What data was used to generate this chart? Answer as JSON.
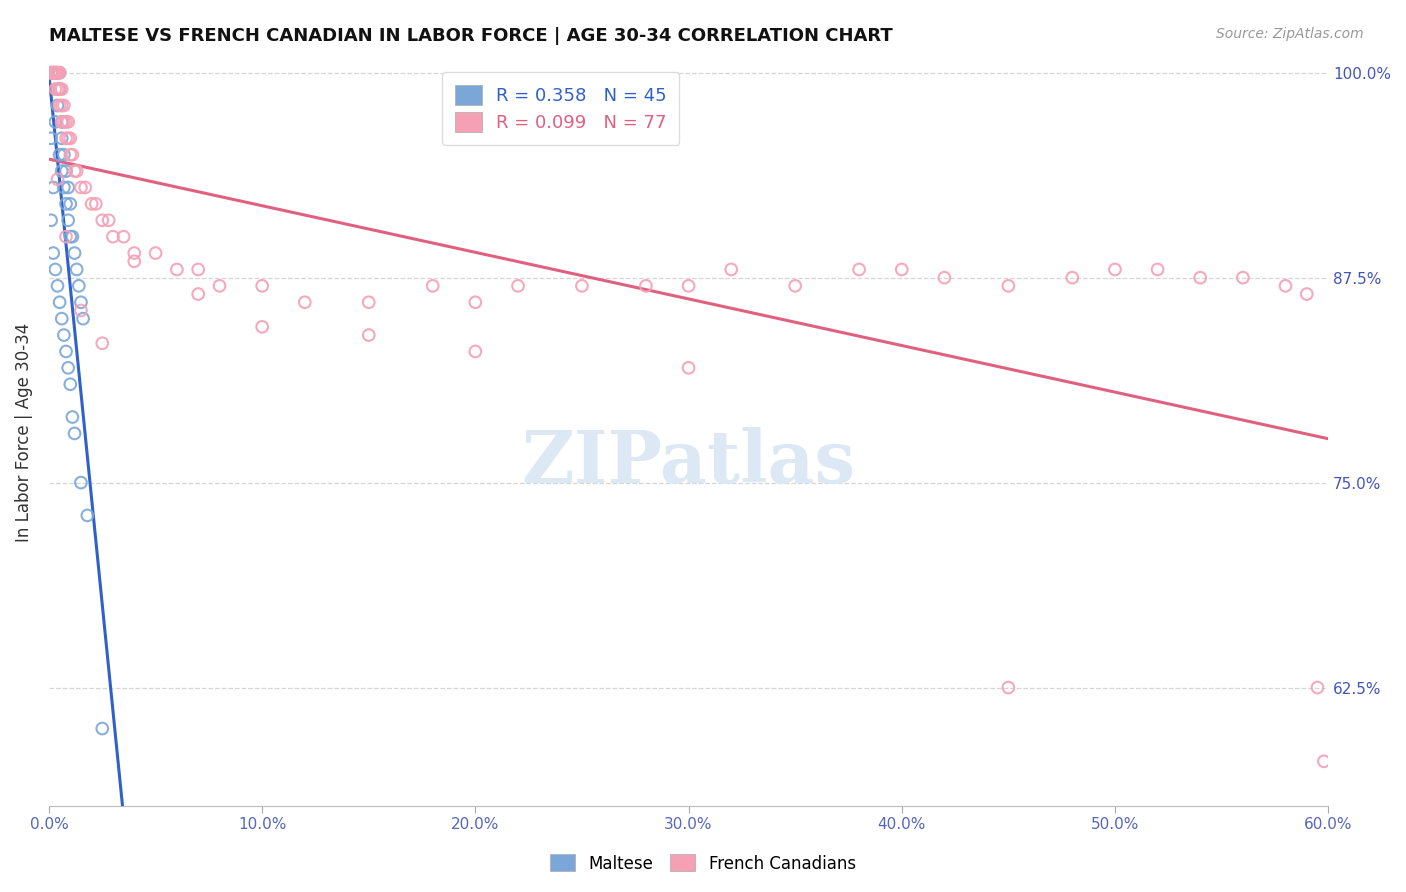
{
  "title": "MALTESE VS FRENCH CANADIAN IN LABOR FORCE | AGE 30-34 CORRELATION CHART",
  "source": "Source: ZipAtlas.com",
  "ylabel": "In Labor Force | Age 30-34",
  "xlim": [
    0.0,
    0.6
  ],
  "ylim": [
    0.553,
    1.008
  ],
  "yticks_right": [
    0.625,
    0.75,
    0.875,
    1.0
  ],
  "ytick_right_labels": [
    "62.5%",
    "75.0%",
    "87.5%",
    "100.0%"
  ],
  "xticks": [
    0.0,
    0.1,
    0.2,
    0.3,
    0.4,
    0.5,
    0.6
  ],
  "xtick_labels": [
    "0.0%",
    "10.0%",
    "20.0%",
    "30.0%",
    "40.0%",
    "50.0%",
    "60.0%"
  ],
  "maltese_color": "#7ba7d8",
  "french_color": "#f5a0b5",
  "maltese_line_color": "#3060cc",
  "french_line_color": "#e06080",
  "watermark": "ZIPatlas",
  "maltese_R": 0.358,
  "maltese_N": 45,
  "french_R": 0.099,
  "french_N": 77,
  "maltese_x": [
    0.001,
    0.001,
    0.002,
    0.002,
    0.002,
    0.003,
    0.003,
    0.003,
    0.004,
    0.004,
    0.005,
    0.005,
    0.005,
    0.006,
    0.006,
    0.006,
    0.007,
    0.007,
    0.008,
    0.008,
    0.009,
    0.009,
    0.01,
    0.01,
    0.011,
    0.012,
    0.013,
    0.014,
    0.015,
    0.016,
    0.001,
    0.002,
    0.003,
    0.004,
    0.005,
    0.006,
    0.007,
    0.008,
    0.009,
    0.01,
    0.011,
    0.012,
    0.015,
    0.018,
    0.025
  ],
  "maltese_y": [
    1.0,
    0.96,
    1.0,
    1.0,
    0.93,
    1.0,
    1.0,
    0.97,
    1.0,
    0.98,
    1.0,
    0.99,
    0.95,
    0.97,
    0.96,
    0.94,
    0.95,
    0.93,
    0.94,
    0.92,
    0.93,
    0.91,
    0.92,
    0.9,
    0.9,
    0.89,
    0.88,
    0.87,
    0.86,
    0.85,
    0.91,
    0.89,
    0.88,
    0.87,
    0.86,
    0.85,
    0.84,
    0.83,
    0.82,
    0.81,
    0.79,
    0.78,
    0.75,
    0.73,
    0.6
  ],
  "french_x": [
    0.001,
    0.001,
    0.002,
    0.002,
    0.002,
    0.003,
    0.003,
    0.003,
    0.003,
    0.004,
    0.004,
    0.004,
    0.005,
    0.005,
    0.005,
    0.006,
    0.006,
    0.006,
    0.007,
    0.007,
    0.008,
    0.008,
    0.009,
    0.009,
    0.01,
    0.01,
    0.011,
    0.012,
    0.013,
    0.015,
    0.017,
    0.02,
    0.022,
    0.025,
    0.028,
    0.03,
    0.035,
    0.04,
    0.05,
    0.06,
    0.07,
    0.08,
    0.1,
    0.12,
    0.15,
    0.18,
    0.2,
    0.22,
    0.25,
    0.28,
    0.3,
    0.32,
    0.35,
    0.38,
    0.4,
    0.42,
    0.45,
    0.48,
    0.5,
    0.52,
    0.54,
    0.56,
    0.58,
    0.59,
    0.595,
    0.598,
    0.004,
    0.008,
    0.015,
    0.025,
    0.04,
    0.07,
    0.1,
    0.15,
    0.2,
    0.3,
    0.45
  ],
  "french_y": [
    1.0,
    1.0,
    1.0,
    1.0,
    1.0,
    1.0,
    1.0,
    1.0,
    0.99,
    1.0,
    1.0,
    0.99,
    1.0,
    0.99,
    0.98,
    0.99,
    0.98,
    0.97,
    0.98,
    0.97,
    0.97,
    0.96,
    0.97,
    0.96,
    0.96,
    0.95,
    0.95,
    0.94,
    0.94,
    0.93,
    0.93,
    0.92,
    0.92,
    0.91,
    0.91,
    0.9,
    0.9,
    0.89,
    0.89,
    0.88,
    0.88,
    0.87,
    0.87,
    0.86,
    0.86,
    0.87,
    0.86,
    0.87,
    0.87,
    0.87,
    0.87,
    0.88,
    0.87,
    0.88,
    0.88,
    0.875,
    0.87,
    0.875,
    0.88,
    0.88,
    0.875,
    0.875,
    0.87,
    0.865,
    0.625,
    0.58,
    0.935,
    0.9,
    0.855,
    0.835,
    0.885,
    0.865,
    0.845,
    0.84,
    0.83,
    0.82,
    0.625
  ]
}
